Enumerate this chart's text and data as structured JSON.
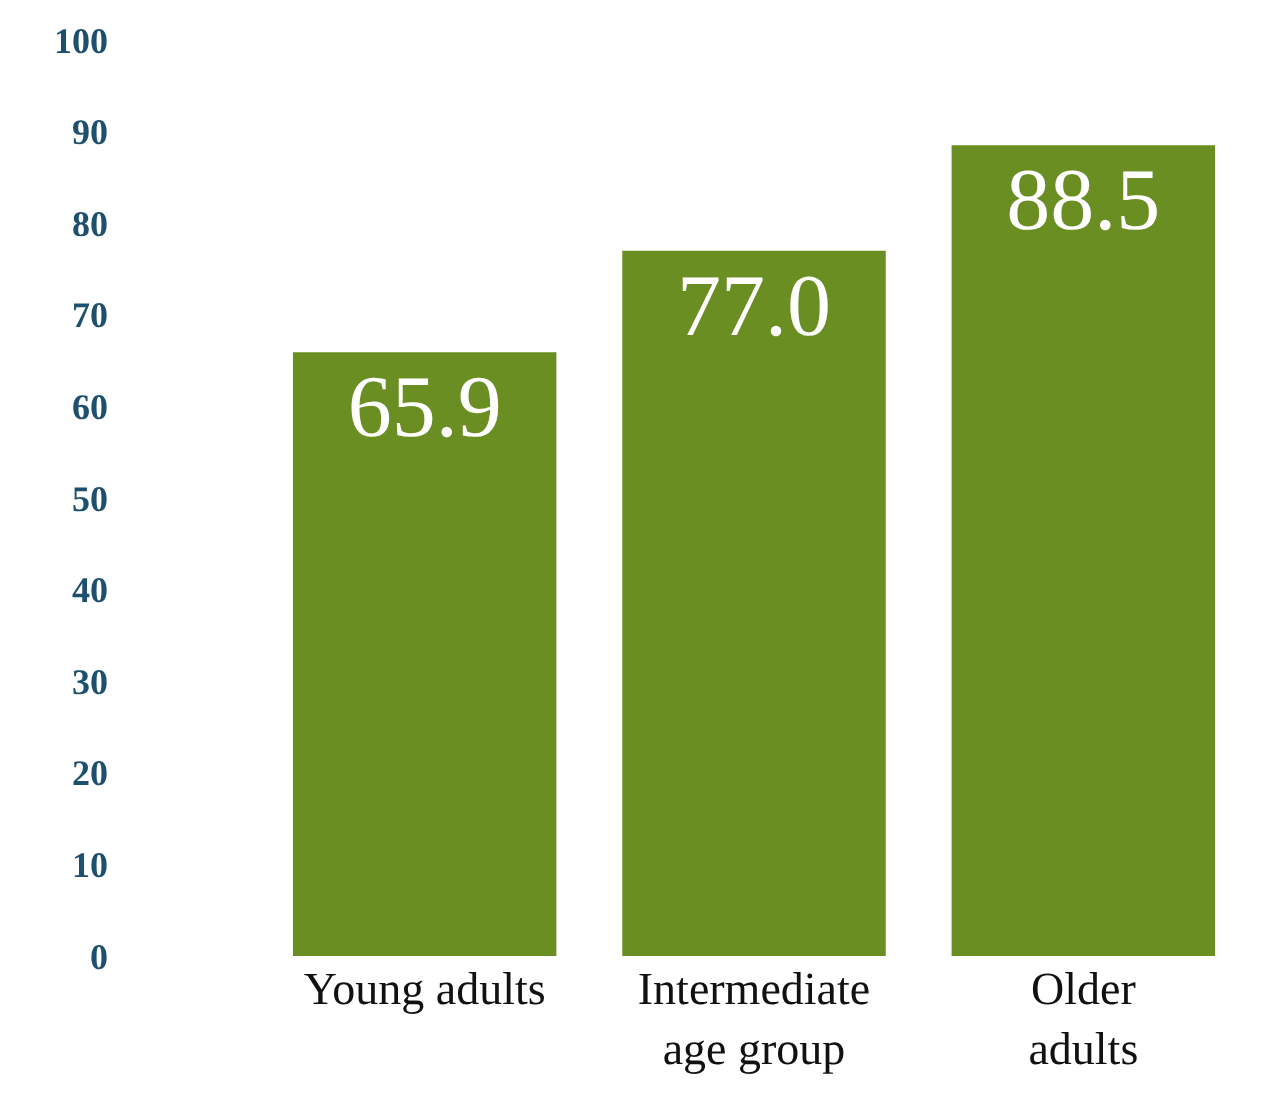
{
  "chart_data": {
    "type": "bar",
    "categories": [
      "Young adults",
      "Intermediate age group",
      "Older adults"
    ],
    "values": [
      65.9,
      77.0,
      88.5
    ],
    "value_labels": [
      "65.9",
      "77.0",
      "88.5"
    ],
    "color": "#6b8e23",
    "ylim": [
      0,
      100
    ],
    "yticks": [
      0,
      10,
      20,
      30,
      40,
      50,
      60,
      70,
      80,
      90,
      100
    ],
    "grid": false
  }
}
